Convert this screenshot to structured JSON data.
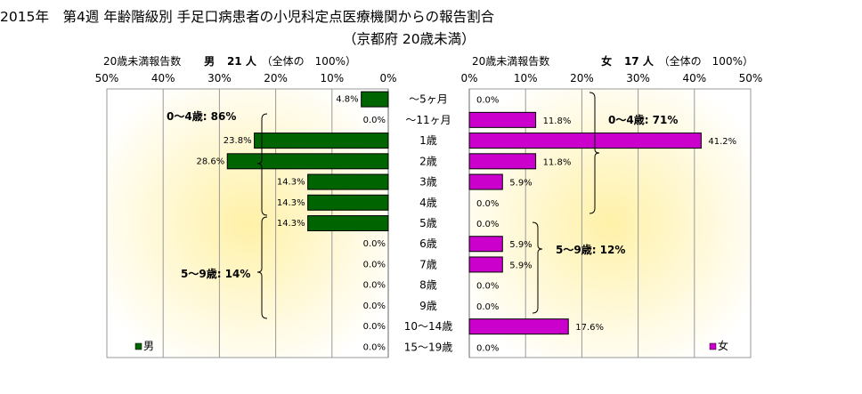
{
  "title": "2015年　第4週 年齢階級別 手足口病患者の小児科定点医療機関からの報告割合",
  "subtitle": "（京都府 20歳未満）",
  "male_header": {
    "prefix": "20歳未満報告数",
    "sex": "男",
    "count": "21 人",
    "suffix": "（全体の　100%）"
  },
  "female_header": {
    "prefix": "20歳未満報告数",
    "sex": "女",
    "count": "17 人",
    "suffix": "（全体の　100%）"
  },
  "chart_data": {
    "type": "bar",
    "orientation": "horizontal",
    "layout": "population-pyramid",
    "categories": [
      "～5ヶ月",
      "～11ヶ月",
      "1歳",
      "2歳",
      "3歳",
      "4歳",
      "5歳",
      "6歳",
      "7歳",
      "8歳",
      "9歳",
      "10～14歳",
      "15～19歳"
    ],
    "xlim": [
      0,
      50
    ],
    "ticks": [
      "0%",
      "10%",
      "20%",
      "30%",
      "40%",
      "50%"
    ],
    "male_ticks": [
      "50%",
      "40%",
      "30%",
      "20%",
      "10%",
      "0%"
    ],
    "series": [
      {
        "name": "男",
        "color": "#006400",
        "values": [
          4.8,
          0.0,
          23.8,
          28.6,
          14.3,
          14.3,
          14.3,
          0.0,
          0.0,
          0.0,
          0.0,
          0.0,
          0.0
        ],
        "labels": [
          "4.8%",
          "0.0%",
          "23.8%",
          "28.6%",
          "14.3%",
          "14.3%",
          "14.3%",
          "0.0%",
          "0.0%",
          "0.0%",
          "0.0%",
          "0.0%",
          "0.0%"
        ]
      },
      {
        "name": "女",
        "color": "#cc00cc",
        "values": [
          0.0,
          11.8,
          41.2,
          11.8,
          5.9,
          0.0,
          0.0,
          5.9,
          5.9,
          0.0,
          0.0,
          17.6,
          0.0
        ],
        "labels": [
          "0.0%",
          "11.8%",
          "41.2%",
          "11.8%",
          "5.9%",
          "0.0%",
          "0.0%",
          "5.9%",
          "5.9%",
          "0.0%",
          "0.0%",
          "17.6%",
          "0.0%"
        ]
      }
    ],
    "annotations": {
      "male_0_4": "0～4歳: 86%",
      "male_5_9": "5～9歳: 14%",
      "female_0_4": "0～4歳: 71%",
      "female_5_9": "5～9歳: 12%"
    },
    "legend": {
      "male": "男",
      "female": "女"
    },
    "grid": true,
    "background": "yellow radial gradient"
  }
}
